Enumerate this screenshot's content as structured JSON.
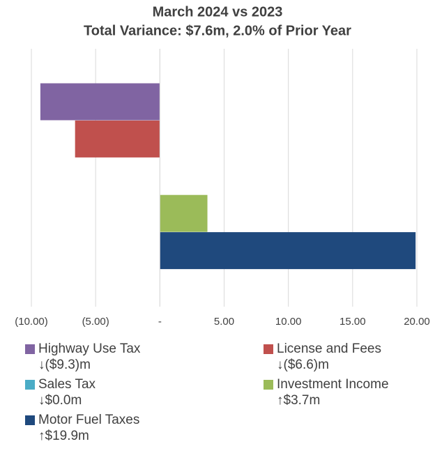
{
  "chart_data": {
    "type": "hbar",
    "title": "March 2024 vs 2023",
    "subtitle": "Total Variance: $7.6m, 2.0% of Prior Year",
    "series": [
      {
        "name": "Highway Use Tax",
        "color": "#8064a2",
        "values": [
          -9.3
        ],
        "value_labels": [
          "↓($9.3)m"
        ]
      },
      {
        "name": "License and Fees",
        "color": "#c0504d",
        "values": [
          -6.6
        ],
        "value_labels": [
          "↓($6.6)m"
        ]
      },
      {
        "name": "Sales Tax",
        "color": "#4bacc6",
        "values": [
          0.0
        ],
        "value_labels": [
          "↓$0.0m"
        ]
      },
      {
        "name": "Investment Income",
        "color": "#9bbb59",
        "values": [
          3.7
        ],
        "value_labels": [
          "↑$3.7m"
        ]
      },
      {
        "name": "Motor Fuel Taxes",
        "color": "#1f497d",
        "values": [
          19.9
        ],
        "value_labels": [
          "↑$19.9m"
        ]
      }
    ],
    "xlim": [
      -10,
      20
    ],
    "xticks": [
      {
        "value": -10,
        "label": "(10.00)"
      },
      {
        "value": -5,
        "label": "(5.00)"
      },
      {
        "value": 0,
        "label": "-"
      },
      {
        "value": 5,
        "label": "5.00"
      },
      {
        "value": 10,
        "label": "10.00"
      },
      {
        "value": 15,
        "label": "15.00"
      },
      {
        "value": 20,
        "label": "20.00"
      }
    ],
    "grid": true
  }
}
